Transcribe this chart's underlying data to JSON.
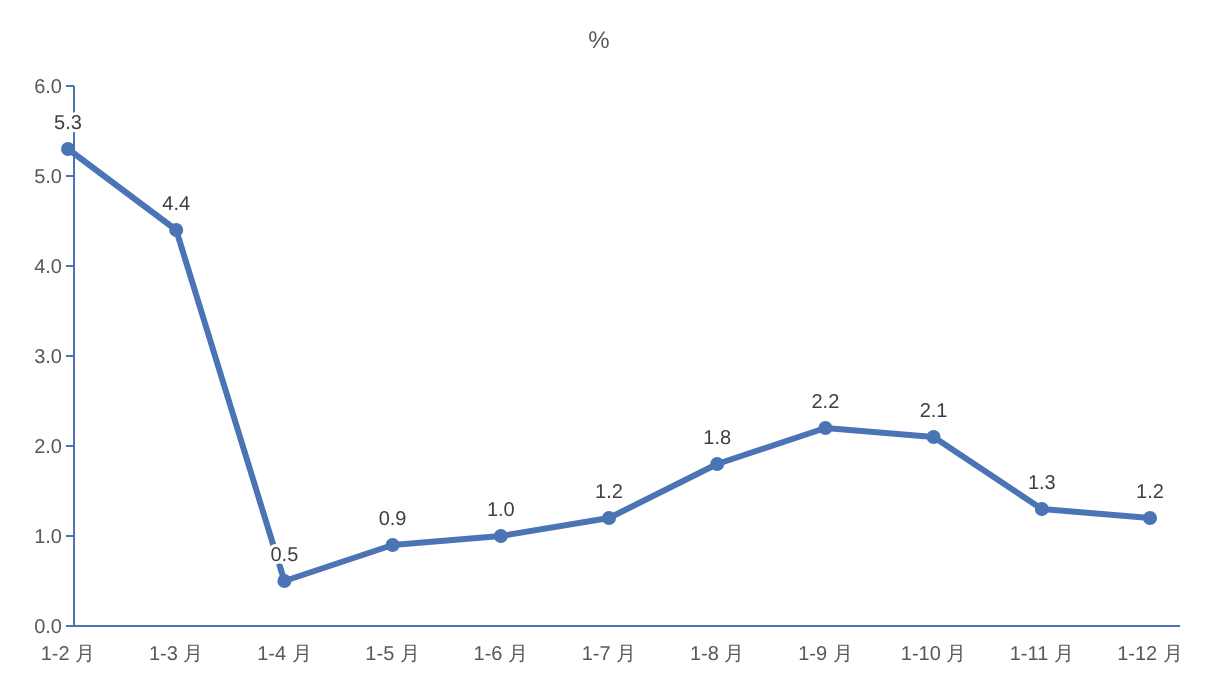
{
  "chart_data": {
    "type": "line",
    "title": "%",
    "categories": [
      "1-2 月",
      "1-3 月",
      "1-4 月",
      "1-5 月",
      "1-6 月",
      "1-7 月",
      "1-8 月",
      "1-9 月",
      "1-10 月",
      "1-11 月",
      "1-12 月"
    ],
    "series": [
      {
        "color": "#4a74b4",
        "values": [
          5.3,
          4.4,
          0.5,
          0.9,
          1.0,
          1.2,
          1.8,
          2.2,
          2.1,
          1.3,
          1.2
        ],
        "value_labels": [
          "5.3",
          "4.4",
          "0.5",
          "0.9",
          "1.0",
          "1.2",
          "1.8",
          "2.2",
          "2.1",
          "1.3",
          "1.2"
        ]
      }
    ],
    "ylim": [
      0,
      6
    ],
    "yticks": [
      {
        "value": 0,
        "label": "0.0"
      },
      {
        "value": 1,
        "label": "1.0"
      },
      {
        "value": 2,
        "label": "2.0"
      },
      {
        "value": 3,
        "label": "3.0"
      },
      {
        "value": 4,
        "label": "4.0"
      },
      {
        "value": 5,
        "label": "5.0"
      },
      {
        "value": 6,
        "label": "6.0"
      }
    ],
    "grid": false,
    "marker": "circle",
    "line_style": "solid"
  }
}
